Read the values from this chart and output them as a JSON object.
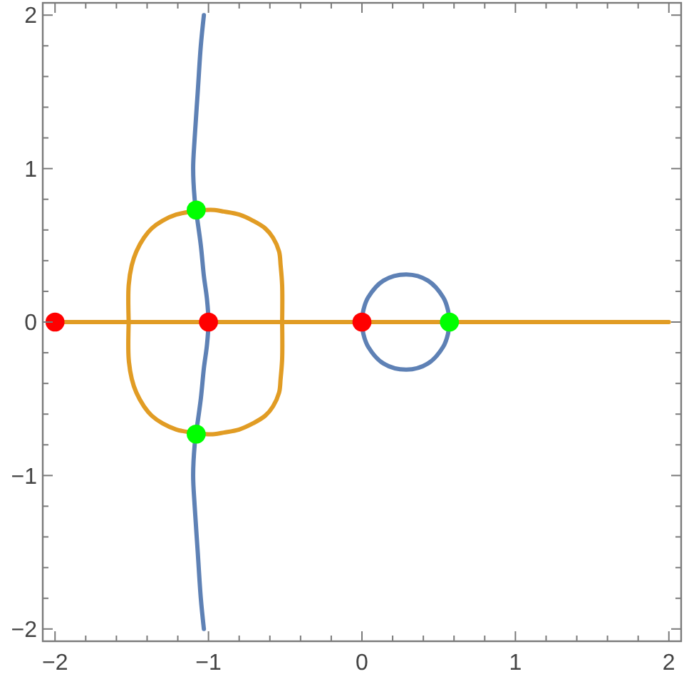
{
  "chart_data": {
    "type": "line",
    "xlim": [
      -2.08,
      2.08
    ],
    "ylim": [
      -2.08,
      2.08
    ],
    "xticks": [
      {
        "value": -2,
        "label": "−2"
      },
      {
        "value": -1.8,
        "label": null
      },
      {
        "value": -1.6,
        "label": null
      },
      {
        "value": -1.4,
        "label": null
      },
      {
        "value": -1.2,
        "label": null
      },
      {
        "value": -1,
        "label": "−1"
      },
      {
        "value": -0.8,
        "label": null
      },
      {
        "value": -0.6,
        "label": null
      },
      {
        "value": -0.4,
        "label": null
      },
      {
        "value": -0.2,
        "label": null
      },
      0,
      {
        "value": 0.2,
        "label": null
      },
      {
        "value": 0.4,
        "label": null
      },
      {
        "value": 0.6,
        "label": null
      },
      {
        "value": 0.8,
        "label": null
      },
      1,
      {
        "value": 1.2,
        "label": null
      },
      {
        "value": 1.4,
        "label": null
      },
      {
        "value": 1.6,
        "label": null
      },
      {
        "value": 1.8,
        "label": null
      },
      2
    ],
    "yticks": [
      {
        "value": -2,
        "label": "−2"
      },
      {
        "value": -1.8,
        "label": null
      },
      {
        "value": -1.6,
        "label": null
      },
      {
        "value": -1.4,
        "label": null
      },
      {
        "value": -1.2,
        "label": null
      },
      {
        "value": -1,
        "label": "−1"
      },
      {
        "value": -0.8,
        "label": null
      },
      {
        "value": -0.6,
        "label": null
      },
      {
        "value": -0.4,
        "label": null
      },
      {
        "value": -0.2,
        "label": null
      },
      0,
      {
        "value": 0.2,
        "label": null
      },
      {
        "value": 0.4,
        "label": null
      },
      {
        "value": 0.6,
        "label": null
      },
      {
        "value": 0.8,
        "label": null
      },
      1,
      {
        "value": 1.2,
        "label": null
      },
      {
        "value": 1.4,
        "label": null
      },
      {
        "value": 1.6,
        "label": null
      },
      {
        "value": 1.8,
        "label": null
      },
      2
    ],
    "series": [
      {
        "color": "#5e81b5",
        "x": [
          -1.03,
          -1.05,
          -1.07,
          -1.09,
          -1.1,
          -1.09,
          -1.08,
          -1.05,
          -1.03,
          -1.01,
          -1,
          -1.01,
          -1.03,
          -1.05,
          -1.08,
          -1.09,
          -1.1,
          -1.09,
          -1.07,
          -1.05,
          -1.03
        ],
        "values": [
          2,
          1.8,
          1.5,
          1.2,
          1,
          0.8,
          0.72,
          0.5,
          0.3,
          0.15,
          0,
          -0.15,
          -0.3,
          -0.5,
          -0.72,
          -0.8,
          -1,
          -1.2,
          -1.5,
          -1.8,
          -2
        ]
      },
      {
        "color": "#5e81b5",
        "x": [
          0,
          0.01,
          0.04,
          0.14,
          0.29,
          0.43,
          0.53,
          0.56,
          0.57
        ],
        "values": [
          0,
          0.08,
          0.16,
          0.27,
          0.31,
          0.27,
          0.16,
          0.08,
          0
        ]
      },
      {
        "color": "#5e81b5",
        "x": [
          0,
          0.01,
          0.04,
          0.14,
          0.29,
          0.43,
          0.53,
          0.56,
          0.57
        ],
        "values": [
          0,
          -0.08,
          -0.16,
          -0.27,
          -0.31,
          -0.27,
          -0.16,
          -0.08,
          0
        ]
      },
      {
        "color": "#e19c24",
        "x": [
          -2,
          2
        ],
        "values": [
          0,
          0
        ]
      },
      {
        "color": "#e19c24",
        "x": [
          -1.52,
          -1.52,
          -1.5,
          -1.47,
          -1.42,
          -1.37,
          -1.3,
          -1.21,
          -1.11,
          -1.02,
          -0.96,
          -0.9,
          -0.8,
          -0.71,
          -0.63,
          -0.58,
          -0.54,
          -0.53,
          -0.52,
          -0.52
        ],
        "values": [
          0,
          0.24,
          0.37,
          0.46,
          0.55,
          0.61,
          0.66,
          0.7,
          0.72,
          0.73,
          0.73,
          0.72,
          0.7,
          0.66,
          0.61,
          0.55,
          0.46,
          0.37,
          0.24,
          0
        ]
      },
      {
        "color": "#e19c24",
        "x": [
          -1.52,
          -1.52,
          -1.5,
          -1.47,
          -1.42,
          -1.37,
          -1.3,
          -1.21,
          -1.11,
          -1.02,
          -0.96,
          -0.9,
          -0.8,
          -0.71,
          -0.63,
          -0.58,
          -0.54,
          -0.53,
          -0.52,
          -0.52
        ],
        "values": [
          0,
          -0.24,
          -0.37,
          -0.46,
          -0.55,
          -0.61,
          -0.66,
          -0.7,
          -0.72,
          -0.73,
          -0.73,
          -0.72,
          -0.7,
          -0.66,
          -0.61,
          -0.55,
          -0.46,
          -0.37,
          -0.24,
          0
        ]
      },
      {
        "type": "scatter",
        "marker": "circle",
        "color": "#ff0000",
        "x": [
          -2,
          -1,
          0
        ],
        "values": [
          0,
          0,
          0
        ]
      },
      {
        "type": "scatter",
        "marker": "circle",
        "color": "#00ff00",
        "x": [
          -1.08,
          -1.08,
          0.57
        ],
        "values": [
          0.73,
          -0.73,
          0
        ]
      }
    ]
  }
}
